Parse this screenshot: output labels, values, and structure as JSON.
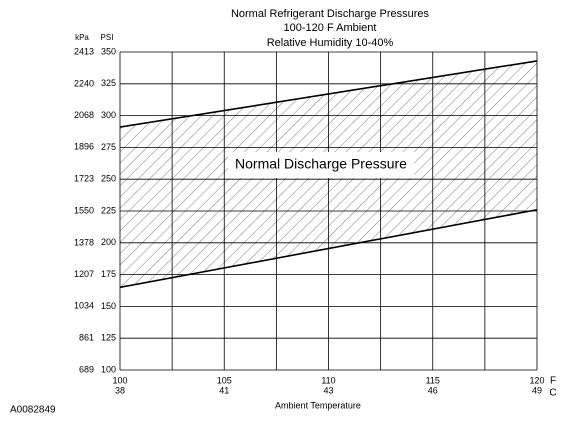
{
  "chart_data": {
    "type": "band",
    "title_lines": [
      "Normal  Refrigerant  Discharge  Pressures",
      "100-120 F Ambient",
      "Relative Humidity 10-40%"
    ],
    "y_axis_label": "PSI",
    "y2_axis_label": "kPa",
    "x_axis_label": "Ambient Temperature",
    "x_unit": "F",
    "x2_unit": "C",
    "annotation": "Normal Discharge Pressure",
    "figure_id": "A0082849",
    "x": [
      100,
      120
    ],
    "upper": [
      291,
      343
    ],
    "lower": [
      165,
      226
    ],
    "xlim": [
      100,
      120
    ],
    "xticks": [
      100,
      105,
      110,
      115,
      120
    ],
    "x2_labels": [
      "38",
      "41",
      "43",
      "46",
      "49"
    ],
    "x_minor_ticks": [
      102.5,
      107.5,
      112.5,
      117.5
    ],
    "ylim": [
      100,
      350
    ],
    "yticks": [
      100,
      125,
      150,
      175,
      200,
      225,
      250,
      275,
      300,
      325,
      350
    ],
    "y2lim": [
      689,
      2413
    ],
    "y2ticks": [
      689,
      861,
      1034,
      1207,
      1378,
      1550,
      1723,
      1896,
      2068,
      2240,
      2413
    ],
    "grid": true
  }
}
